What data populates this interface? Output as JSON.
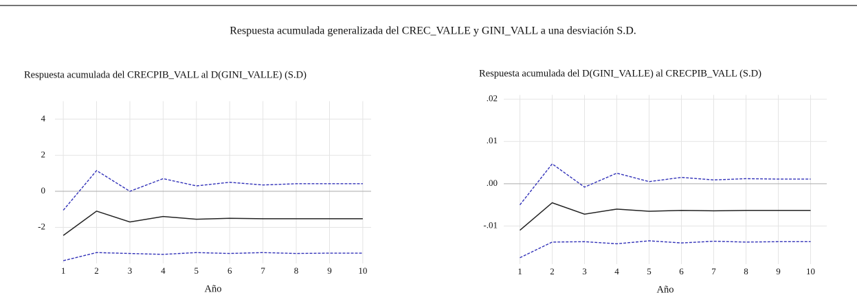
{
  "title": "Respuesta acumulada generalizada del CREC_VALLE y GINI_VALL a una desviación S.D.",
  "chart_data": [
    {
      "type": "line",
      "title": "Respuesta acumulada del CRECPIB_VALL al  D(GINI_VALLE) (S.D)",
      "x_label": "Año",
      "x": [
        1,
        2,
        3,
        4,
        5,
        6,
        7,
        8,
        9,
        10
      ],
      "xlim": [
        0.75,
        10.25
      ],
      "xticks": [
        1,
        2,
        3,
        4,
        5,
        6,
        7,
        8,
        9,
        10
      ],
      "ylim": [
        -4,
        5
      ],
      "yticks": [
        -2,
        0,
        2,
        4
      ],
      "grid": true,
      "series": [
        {
          "color": "#3030b8",
          "style": "dashed",
          "values": [
            -1.05,
            1.15,
            0.0,
            0.7,
            0.3,
            0.5,
            0.35,
            0.42,
            0.42,
            0.42
          ]
        },
        {
          "color": "#222222",
          "style": "solid",
          "values": [
            -2.45,
            -1.1,
            -1.7,
            -1.4,
            -1.55,
            -1.5,
            -1.52,
            -1.52,
            -1.52,
            -1.52
          ]
        },
        {
          "color": "#3030b8",
          "style": "dashed",
          "values": [
            -3.85,
            -3.4,
            -3.45,
            -3.5,
            -3.4,
            -3.45,
            -3.4,
            -3.45,
            -3.43,
            -3.43
          ]
        }
      ]
    },
    {
      "type": "line",
      "title": "Respuesta acumulada del  D(GINI_VALLE) al CRECPIB_VALL (S.D)",
      "x_label": "Año",
      "x": [
        1,
        2,
        3,
        4,
        5,
        6,
        7,
        8,
        9,
        10
      ],
      "xlim": [
        0.5,
        10.5
      ],
      "xticks": [
        1,
        2,
        3,
        4,
        5,
        6,
        7,
        8,
        9,
        10
      ],
      "ylim": [
        -0.019,
        0.021
      ],
      "yticks": [
        {
          "value": -0.01,
          "label": "-.01"
        },
        {
          "value": 0,
          "label": ".00"
        },
        {
          "value": 0.01,
          "label": ".01"
        },
        {
          "value": 0.02,
          "label": ".02"
        }
      ],
      "grid": true,
      "series": [
        {
          "color": "#3030b8",
          "style": "dashed",
          "values": [
            -0.005,
            0.0047,
            -0.0008,
            0.0025,
            0.0005,
            0.0015,
            0.0009,
            0.0012,
            0.0011,
            0.0011
          ]
        },
        {
          "color": "#222222",
          "style": "solid",
          "values": [
            -0.011,
            -0.0045,
            -0.0072,
            -0.006,
            -0.0065,
            -0.0063,
            -0.0064,
            -0.0063,
            -0.0063,
            -0.0063
          ]
        },
        {
          "color": "#3030b8",
          "style": "dashed",
          "values": [
            -0.0175,
            -0.0138,
            -0.0137,
            -0.0142,
            -0.0135,
            -0.014,
            -0.0136,
            -0.0138,
            -0.0137,
            -0.0137
          ]
        }
      ]
    }
  ]
}
